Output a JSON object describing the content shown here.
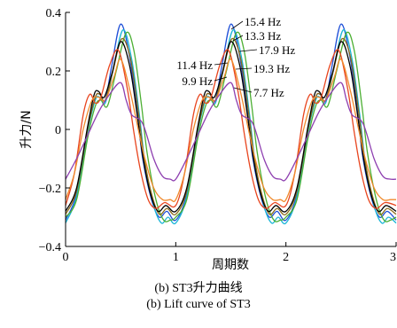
{
  "chart_data": {
    "type": "line",
    "xlabel": "周期数",
    "ylabel": "升力/N",
    "xlim": [
      0,
      3
    ],
    "ylim": [
      -0.4,
      0.4
    ],
    "xticks": [
      0,
      1,
      2,
      3
    ],
    "xtick_labels": [
      "0",
      "1",
      "2",
      "3"
    ],
    "yticks": [
      -0.4,
      -0.2,
      0,
      0.2,
      0.4
    ],
    "ytick_labels": [
      "−0.4",
      "−0.2",
      "0",
      "0.2",
      "0.4"
    ],
    "series": [
      {
        "name": "15.4 Hz",
        "color": "#1f4fd8",
        "x": [
          0,
          0.1,
          0.2,
          0.27,
          0.31,
          0.36,
          0.42,
          0.5,
          0.58,
          0.65,
          0.7,
          0.78,
          0.85,
          0.92,
          1.0
        ],
        "y": [
          -0.31,
          -0.22,
          0.0,
          0.11,
          0.12,
          0.1,
          0.22,
          0.36,
          0.25,
          0.06,
          -0.1,
          -0.24,
          -0.3,
          -0.28,
          -0.31
        ]
      },
      {
        "name": "13.3 Hz",
        "color": "#19b5d6",
        "x": [
          0,
          0.1,
          0.2,
          0.27,
          0.31,
          0.36,
          0.43,
          0.52,
          0.6,
          0.67,
          0.72,
          0.8,
          0.87,
          0.93,
          1.0
        ],
        "y": [
          -0.32,
          -0.23,
          -0.01,
          0.1,
          0.11,
          0.09,
          0.2,
          0.34,
          0.24,
          0.05,
          -0.11,
          -0.26,
          -0.32,
          -0.3,
          -0.32
        ]
      },
      {
        "name": "17.9 Hz",
        "color": "#4caf33",
        "x": [
          0,
          0.1,
          0.2,
          0.27,
          0.32,
          0.38,
          0.46,
          0.55,
          0.62,
          0.69,
          0.74,
          0.82,
          0.89,
          0.95,
          1.0
        ],
        "y": [
          -0.3,
          -0.24,
          -0.03,
          0.08,
          0.1,
          0.08,
          0.2,
          0.33,
          0.27,
          0.08,
          -0.08,
          -0.24,
          -0.31,
          -0.31,
          -0.3
        ]
      },
      {
        "name": "19.3 Hz",
        "color": "#8a6a1a",
        "x": [
          0,
          0.1,
          0.2,
          0.27,
          0.31,
          0.36,
          0.43,
          0.51,
          0.59,
          0.66,
          0.71,
          0.78,
          0.85,
          0.92,
          1.0
        ],
        "y": [
          -0.29,
          -0.21,
          0.0,
          0.11,
          0.12,
          0.1,
          0.2,
          0.31,
          0.24,
          0.06,
          -0.09,
          -0.22,
          -0.29,
          -0.27,
          -0.29
        ]
      },
      {
        "name": "11.4 Hz",
        "color": "#000000",
        "x": [
          0,
          0.1,
          0.2,
          0.26,
          0.3,
          0.35,
          0.42,
          0.5,
          0.58,
          0.65,
          0.7,
          0.77,
          0.84,
          0.91,
          1.0
        ],
        "y": [
          -0.28,
          -0.2,
          0.01,
          0.12,
          0.13,
          0.11,
          0.19,
          0.3,
          0.22,
          0.05,
          -0.09,
          -0.22,
          -0.28,
          -0.26,
          -0.28
        ]
      },
      {
        "name": "9.9 Hz",
        "color": "#e8451f",
        "x": [
          0,
          0.08,
          0.16,
          0.22,
          0.27,
          0.32,
          0.4,
          0.48,
          0.56,
          0.62,
          0.68,
          0.75,
          0.82,
          0.9,
          1.0
        ],
        "y": [
          -0.26,
          -0.15,
          0.05,
          0.12,
          0.09,
          0.11,
          0.22,
          0.27,
          0.14,
          -0.01,
          -0.14,
          -0.24,
          -0.27,
          -0.25,
          -0.26
        ]
      },
      {
        "name": "7.7 Hz",
        "color": "#f08a2c",
        "x": [
          0,
          0.08,
          0.16,
          0.24,
          0.3,
          0.36,
          0.44,
          0.5,
          0.58,
          0.66,
          0.72,
          0.8,
          0.88,
          0.95,
          1.0
        ],
        "y": [
          -0.24,
          -0.15,
          0.0,
          0.1,
          0.11,
          0.1,
          0.18,
          0.24,
          0.14,
          0.0,
          -0.1,
          -0.2,
          -0.24,
          -0.24,
          -0.24
        ]
      },
      {
        "name": "",
        "color": "#8e3fb0",
        "x": [
          0,
          0.1,
          0.2,
          0.3,
          0.4,
          0.5,
          0.55,
          0.6,
          0.7,
          0.8,
          0.88,
          0.95,
          1.0
        ],
        "y": [
          -0.17,
          -0.1,
          -0.02,
          0.06,
          0.12,
          0.16,
          0.1,
          0.05,
          0.02,
          -0.1,
          -0.16,
          -0.17,
          -0.17
        ]
      }
    ],
    "annotations": [
      {
        "text": "15.4 Hz",
        "series": "15.4 Hz"
      },
      {
        "text": "13.3 Hz",
        "series": "13.3 Hz"
      },
      {
        "text": "17.9 Hz",
        "series": "17.9 Hz"
      },
      {
        "text": "11.4 Hz",
        "series": "11.4 Hz"
      },
      {
        "text": "19.3 Hz",
        "series": "19.3 Hz"
      },
      {
        "text": "9.9 Hz",
        "series": "9.9 Hz"
      },
      {
        "text": "7.7 Hz",
        "series": "7.7 Hz"
      }
    ],
    "grid": false
  },
  "caption": {
    "chinese": "(b) ST3升力曲线",
    "english": "(b) Lift curve of ST3"
  }
}
